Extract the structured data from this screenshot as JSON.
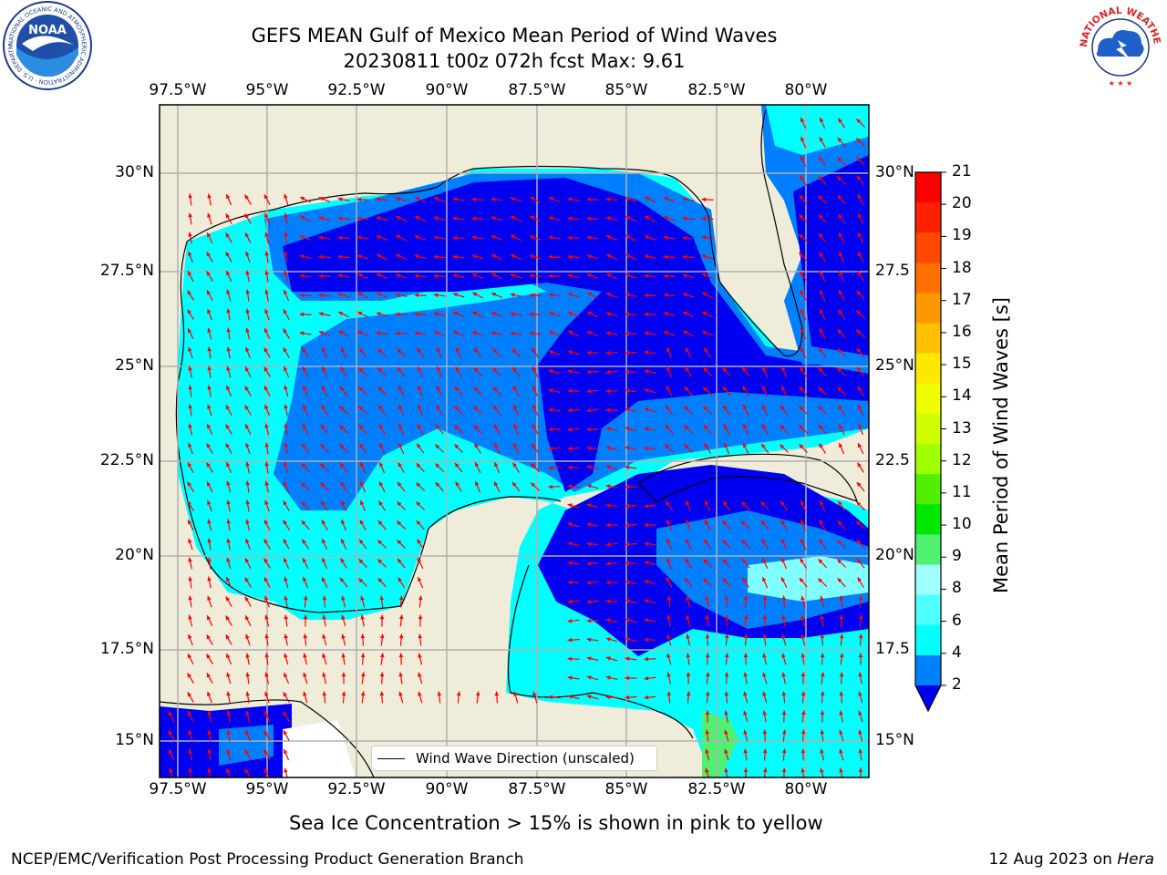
{
  "title": {
    "line1": "GEFS MEAN Gulf of Mexico Mean Period of Wind Waves",
    "line2": "20230811 t00z 072h fcst   Max: 9.61"
  },
  "map": {
    "lon_labels": [
      "97.5°W",
      "95°W",
      "92.5°W",
      "90°W",
      "87.5°W",
      "85°W",
      "82.5°W",
      "80°W"
    ],
    "lat_labels_left": [
      "30°N",
      "27.5°N",
      "25°N",
      "22.5°N",
      "20°N",
      "17.5°N",
      "15°N"
    ],
    "lat_labels_right": [
      "30°N",
      "27.5",
      "25°N",
      "22.5",
      "20°N",
      "17.5",
      "15°N"
    ],
    "legend_label": "Wind Wave Direction (unscaled)",
    "arrow_color": "#ff0000",
    "land_color": "#efedda",
    "water_colors": {
      "dark_blue": "#0000f0",
      "blue": "#0080ff",
      "cyan": "#00ffff",
      "light_cyan": "#80ffff",
      "green": "#50f070"
    }
  },
  "colorbar": {
    "label": "Mean Period of Wind Waves [s]",
    "ticks": [
      "21",
      "20",
      "19",
      "18",
      "17",
      "16",
      "15",
      "14",
      "13",
      "12",
      "11",
      "10",
      "9",
      "8",
      "6",
      "4",
      "2"
    ],
    "colors": [
      "#ff0000",
      "#ff2000",
      "#ff4800",
      "#ff7000",
      "#ff9800",
      "#ffc000",
      "#ffe800",
      "#f0ff00",
      "#d0ff00",
      "#a0ff00",
      "#50f000",
      "#00e800",
      "#50f070",
      "#a0ffff",
      "#50ffff",
      "#00ffff",
      "#0080ff"
    ],
    "extend_color": "#0000f0"
  },
  "caption": "Sea Ice Concentration > 15% is shown in pink to yellow",
  "footer": {
    "left": "NCEP/EMC/Verification Post Processing Product Generation Branch",
    "right_prefix": "12 Aug 2023 on ",
    "right_host": "Hera"
  },
  "logos": {
    "noaa_text": "NOAA",
    "noaa_ring": "NATIONAL OCEANIC AND ATMOSPHERIC ADMINISTRATION · U.S. DEPARTMENT OF COMMERCE",
    "nws_ring": "NATIONAL WEATHER SERVICE"
  }
}
